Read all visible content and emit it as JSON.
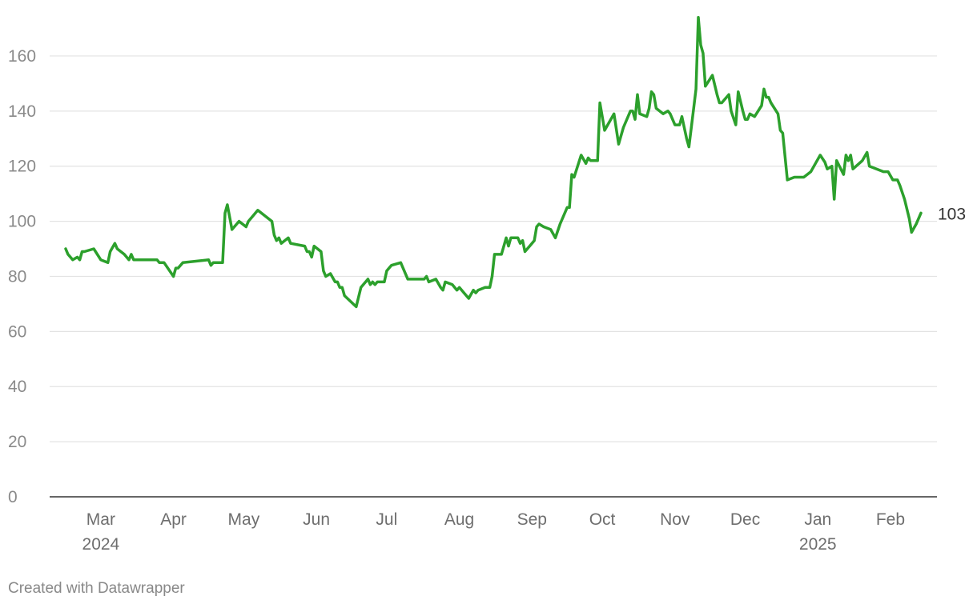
{
  "chart_data": {
    "type": "line",
    "title": "",
    "xlabel": "",
    "ylabel": "",
    "ylim": [
      0,
      175
    ],
    "xlim": [
      "2024-02-15",
      "2025-02-14"
    ],
    "yticks": [
      0,
      20,
      40,
      60,
      80,
      100,
      120,
      140,
      160
    ],
    "xticks": [
      {
        "date": "2024-03-01",
        "label": "Mar",
        "sublabel": "2024"
      },
      {
        "date": "2024-04-01",
        "label": "Apr"
      },
      {
        "date": "2024-05-01",
        "label": "May"
      },
      {
        "date": "2024-06-01",
        "label": "Jun"
      },
      {
        "date": "2024-07-01",
        "label": "Jul"
      },
      {
        "date": "2024-08-01",
        "label": "Aug"
      },
      {
        "date": "2024-09-01",
        "label": "Sep"
      },
      {
        "date": "2024-10-01",
        "label": "Oct"
      },
      {
        "date": "2024-11-01",
        "label": "Nov"
      },
      {
        "date": "2024-12-01",
        "label": "Dec"
      },
      {
        "date": "2025-01-01",
        "label": "Jan",
        "sublabel": "2025"
      },
      {
        "date": "2025-02-01",
        "label": "Feb"
      }
    ],
    "grid": true,
    "line_color": "#2ca02c",
    "end_label": "103",
    "series": [
      {
        "points": [
          [
            "2024-02-15",
            90
          ],
          [
            "2024-02-16",
            88
          ],
          [
            "2024-02-18",
            86
          ],
          [
            "2024-02-20",
            87
          ],
          [
            "2024-02-21",
            86
          ],
          [
            "2024-02-22",
            89
          ],
          [
            "2024-02-23",
            89
          ],
          [
            "2024-02-27",
            90
          ],
          [
            "2024-03-01",
            86
          ],
          [
            "2024-03-04",
            85
          ],
          [
            "2024-03-05",
            89
          ],
          [
            "2024-03-07",
            92
          ],
          [
            "2024-03-08",
            90
          ],
          [
            "2024-03-11",
            88
          ],
          [
            "2024-03-13",
            86
          ],
          [
            "2024-03-14",
            88
          ],
          [
            "2024-03-15",
            86
          ],
          [
            "2024-03-25",
            86
          ],
          [
            "2024-03-26",
            85
          ],
          [
            "2024-03-28",
            85
          ],
          [
            "2024-04-01",
            80
          ],
          [
            "2024-04-02",
            83
          ],
          [
            "2024-04-03",
            83
          ],
          [
            "2024-04-05",
            85
          ],
          [
            "2024-04-16",
            86
          ],
          [
            "2024-04-17",
            84
          ],
          [
            "2024-04-18",
            85
          ],
          [
            "2024-04-22",
            85
          ],
          [
            "2024-04-23",
            103
          ],
          [
            "2024-04-24",
            106
          ],
          [
            "2024-04-26",
            97
          ],
          [
            "2024-04-29",
            100
          ],
          [
            "2024-05-02",
            98
          ],
          [
            "2024-05-03",
            100
          ],
          [
            "2024-05-07",
            104
          ],
          [
            "2024-05-13",
            100
          ],
          [
            "2024-05-14",
            95
          ],
          [
            "2024-05-15",
            93
          ],
          [
            "2024-05-16",
            94
          ],
          [
            "2024-05-17",
            92
          ],
          [
            "2024-05-20",
            94
          ],
          [
            "2024-05-21",
            92
          ],
          [
            "2024-05-27",
            91
          ],
          [
            "2024-05-28",
            89
          ],
          [
            "2024-05-29",
            89
          ],
          [
            "2024-05-30",
            87
          ],
          [
            "2024-05-31",
            91
          ],
          [
            "2024-06-03",
            89
          ],
          [
            "2024-06-04",
            82
          ],
          [
            "2024-06-05",
            80
          ],
          [
            "2024-06-07",
            81
          ],
          [
            "2024-06-09",
            78
          ],
          [
            "2024-06-10",
            78
          ],
          [
            "2024-06-11",
            76
          ],
          [
            "2024-06-12",
            76
          ],
          [
            "2024-06-13",
            73
          ],
          [
            "2024-06-18",
            69
          ],
          [
            "2024-06-20",
            76
          ],
          [
            "2024-06-23",
            79
          ],
          [
            "2024-06-24",
            77
          ],
          [
            "2024-06-25",
            78
          ],
          [
            "2024-06-26",
            77
          ],
          [
            "2024-06-27",
            78
          ],
          [
            "2024-06-30",
            78
          ],
          [
            "2024-07-01",
            82
          ],
          [
            "2024-07-02",
            83
          ],
          [
            "2024-07-03",
            84
          ],
          [
            "2024-07-07",
            85
          ],
          [
            "2024-07-10",
            79
          ],
          [
            "2024-07-17",
            79
          ],
          [
            "2024-07-18",
            80
          ],
          [
            "2024-07-19",
            78
          ],
          [
            "2024-07-22",
            79
          ],
          [
            "2024-07-24",
            76
          ],
          [
            "2024-07-25",
            75
          ],
          [
            "2024-07-26",
            78
          ],
          [
            "2024-07-29",
            77
          ],
          [
            "2024-07-31",
            75
          ],
          [
            "2024-08-01",
            76
          ],
          [
            "2024-08-03",
            74
          ],
          [
            "2024-08-05",
            72
          ],
          [
            "2024-08-07",
            75
          ],
          [
            "2024-08-08",
            74
          ],
          [
            "2024-08-09",
            75
          ],
          [
            "2024-08-12",
            76
          ],
          [
            "2024-08-14",
            76
          ],
          [
            "2024-08-15",
            80
          ],
          [
            "2024-08-16",
            88
          ],
          [
            "2024-08-19",
            88
          ],
          [
            "2024-08-21",
            94
          ],
          [
            "2024-08-22",
            91
          ],
          [
            "2024-08-23",
            94
          ],
          [
            "2024-08-26",
            94
          ],
          [
            "2024-08-27",
            92
          ],
          [
            "2024-08-28",
            93
          ],
          [
            "2024-08-29",
            89
          ],
          [
            "2024-08-31",
            91
          ],
          [
            "2024-09-02",
            93
          ],
          [
            "2024-09-03",
            98
          ],
          [
            "2024-09-04",
            99
          ],
          [
            "2024-09-06",
            98
          ],
          [
            "2024-09-09",
            97
          ],
          [
            "2024-09-11",
            94
          ],
          [
            "2024-09-13",
            99
          ],
          [
            "2024-09-16",
            105
          ],
          [
            "2024-09-17",
            105
          ],
          [
            "2024-09-18",
            117
          ],
          [
            "2024-09-19",
            116
          ],
          [
            "2024-09-22",
            124
          ],
          [
            "2024-09-24",
            121
          ],
          [
            "2024-09-25",
            123
          ],
          [
            "2024-09-26",
            122
          ],
          [
            "2024-09-29",
            122
          ],
          [
            "2024-09-30",
            143
          ],
          [
            "2024-10-02",
            133
          ],
          [
            "2024-10-06",
            139
          ],
          [
            "2024-10-08",
            128
          ],
          [
            "2024-10-10",
            134
          ],
          [
            "2024-10-13",
            140
          ],
          [
            "2024-10-14",
            140
          ],
          [
            "2024-10-15",
            137
          ],
          [
            "2024-10-16",
            146
          ],
          [
            "2024-10-17",
            139
          ],
          [
            "2024-10-20",
            138
          ],
          [
            "2024-10-21",
            141
          ],
          [
            "2024-10-22",
            147
          ],
          [
            "2024-10-23",
            146
          ],
          [
            "2024-10-24",
            141
          ],
          [
            "2024-10-27",
            139
          ],
          [
            "2024-10-29",
            140
          ],
          [
            "2024-10-30",
            139
          ],
          [
            "2024-11-01",
            135
          ],
          [
            "2024-11-03",
            135
          ],
          [
            "2024-11-04",
            138
          ],
          [
            "2024-11-06",
            130
          ],
          [
            "2024-11-07",
            127
          ],
          [
            "2024-11-09",
            141
          ],
          [
            "2024-11-10",
            148
          ],
          [
            "2024-11-11",
            174
          ],
          [
            "2024-11-12",
            164
          ],
          [
            "2024-11-13",
            161
          ],
          [
            "2024-11-14",
            149
          ],
          [
            "2024-11-17",
            153
          ],
          [
            "2024-11-19",
            146
          ],
          [
            "2024-11-20",
            143
          ],
          [
            "2024-11-21",
            143
          ],
          [
            "2024-11-24",
            146
          ],
          [
            "2024-11-25",
            140
          ],
          [
            "2024-11-27",
            135
          ],
          [
            "2024-11-28",
            147
          ],
          [
            "2024-11-30",
            140
          ],
          [
            "2024-12-01",
            137
          ],
          [
            "2024-12-02",
            137
          ],
          [
            "2024-12-03",
            139
          ],
          [
            "2024-12-05",
            138
          ],
          [
            "2024-12-08",
            142
          ],
          [
            "2024-12-09",
            148
          ],
          [
            "2024-12-10",
            145
          ],
          [
            "2024-12-11",
            145
          ],
          [
            "2024-12-12",
            143
          ],
          [
            "2024-12-15",
            139
          ],
          [
            "2024-12-16",
            133
          ],
          [
            "2024-12-17",
            132
          ],
          [
            "2024-12-19",
            115
          ],
          [
            "2024-12-22",
            116
          ],
          [
            "2024-12-26",
            116
          ],
          [
            "2024-12-29",
            118
          ],
          [
            "2024-12-31",
            121
          ],
          [
            "2025-01-02",
            124
          ],
          [
            "2025-01-04",
            121.5
          ],
          [
            "2025-01-05",
            119
          ],
          [
            "2025-01-07",
            120
          ],
          [
            "2025-01-08",
            108
          ],
          [
            "2025-01-09",
            122
          ],
          [
            "2025-01-12",
            117
          ],
          [
            "2025-01-13",
            124
          ],
          [
            "2025-01-14",
            122
          ],
          [
            "2025-01-15",
            124
          ],
          [
            "2025-01-16",
            119
          ],
          [
            "2025-01-20",
            122
          ],
          [
            "2025-01-22",
            125
          ],
          [
            "2025-01-23",
            120
          ],
          [
            "2025-01-29",
            118
          ],
          [
            "2025-01-31",
            118
          ],
          [
            "2025-02-02",
            115
          ],
          [
            "2025-02-04",
            115
          ],
          [
            "2025-02-05",
            113
          ],
          [
            "2025-02-07",
            108
          ],
          [
            "2025-02-09",
            101
          ],
          [
            "2025-02-10",
            96
          ],
          [
            "2025-02-12",
            99
          ],
          [
            "2025-02-14",
            103
          ]
        ]
      }
    ]
  },
  "footer": "Created with Datawrapper"
}
